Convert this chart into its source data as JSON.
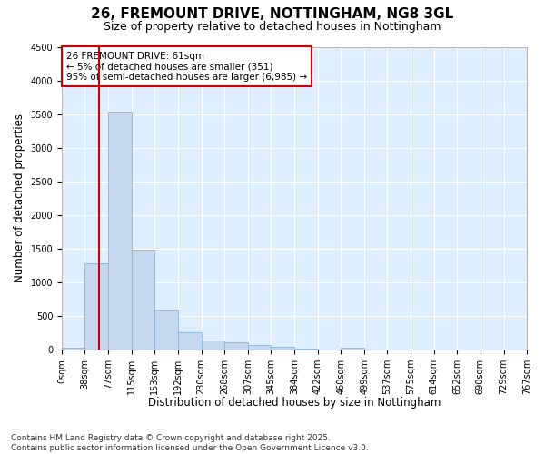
{
  "title_line1": "26, FREMOUNT DRIVE, NOTTINGHAM, NG8 3GL",
  "title_line2": "Size of property relative to detached houses in Nottingham",
  "xlabel": "Distribution of detached houses by size in Nottingham",
  "ylabel": "Number of detached properties",
  "bar_color": "#c5d8f0",
  "bar_edge_color": "#8ab4d8",
  "background_color": "#ddeeff",
  "grid_color": "#ffffff",
  "vline_x": 61,
  "vline_color": "#cc0000",
  "annotation_text": "26 FREMOUNT DRIVE: 61sqm\n← 5% of detached houses are smaller (351)\n95% of semi-detached houses are larger (6,985) →",
  "annotation_box_color": "#cc0000",
  "bin_edges": [
    0,
    38,
    77,
    115,
    153,
    192,
    230,
    268,
    307,
    345,
    384,
    422,
    460,
    499,
    537,
    575,
    614,
    652,
    690,
    729,
    767
  ],
  "bar_heights": [
    30,
    1280,
    3530,
    1490,
    600,
    250,
    130,
    110,
    65,
    35,
    12,
    5,
    30,
    0,
    0,
    0,
    0,
    0,
    0,
    0
  ],
  "ylim": [
    0,
    4500
  ],
  "yticks": [
    0,
    500,
    1000,
    1500,
    2000,
    2500,
    3000,
    3500,
    4000,
    4500
  ],
  "footnote": "Contains HM Land Registry data © Crown copyright and database right 2025.\nContains public sector information licensed under the Open Government Licence v3.0.",
  "title_fontsize": 11,
  "subtitle_fontsize": 9,
  "axis_label_fontsize": 8.5,
  "tick_fontsize": 7,
  "footnote_fontsize": 6.5,
  "annotation_fontsize": 7.5
}
